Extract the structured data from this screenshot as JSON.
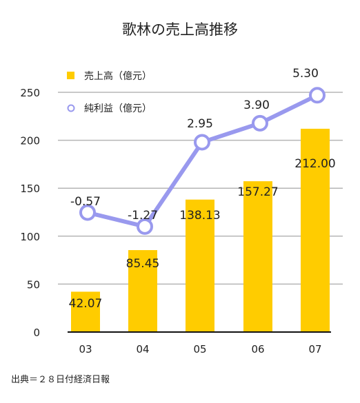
{
  "chart_data": {
    "type": "bar",
    "title": "歌林の売上高推移",
    "categories": [
      "03",
      "04",
      "05",
      "06",
      "07"
    ],
    "ylim": [
      0,
      250
    ],
    "yticks": [
      0,
      50,
      100,
      150,
      200,
      250
    ],
    "grid": true,
    "legend_placement": "top-left",
    "series": [
      {
        "name": "売上高（億元）",
        "kind": "bar",
        "color": "#FFCC00",
        "values": [
          42.07,
          85.45,
          138.13,
          157.27,
          212.0
        ],
        "labels": [
          "42.07",
          "85.45",
          "138.13",
          "157.27",
          "212.00"
        ]
      },
      {
        "name": "純利益（億元）",
        "kind": "line",
        "color": "#9999EE",
        "values": [
          -0.57,
          -1.27,
          2.95,
          3.9,
          5.3
        ],
        "labels": [
          "-0.57",
          "-1.27",
          "2.95",
          "3.90",
          "5.30"
        ]
      }
    ]
  },
  "source": "出典＝２８日付経済日報"
}
